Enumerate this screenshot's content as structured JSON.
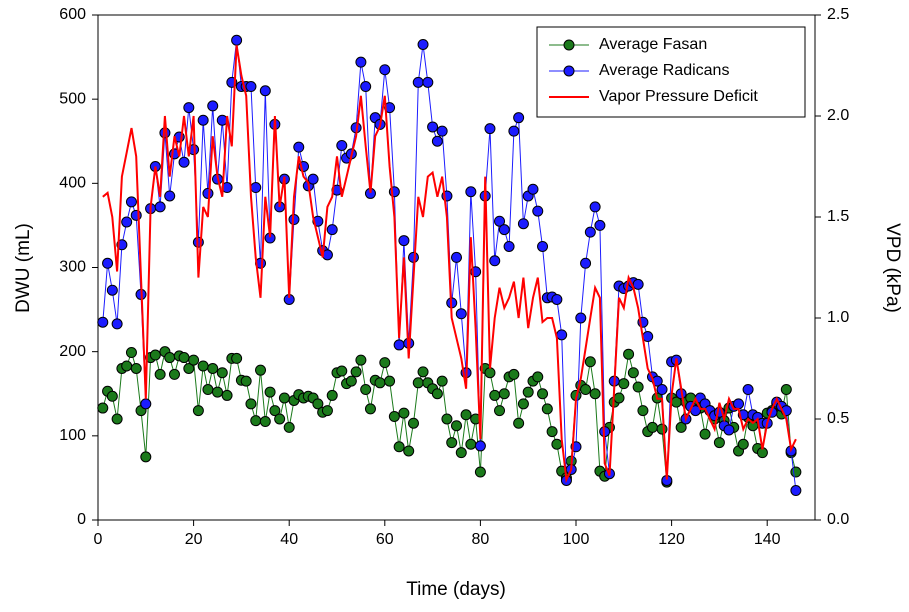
{
  "chart_data": {
    "type": "line",
    "x_label": "Time (days)",
    "y_label": "DWU (mL)",
    "y2_label": "VPD (kPa)",
    "xlim": [
      0,
      150
    ],
    "xticks": [
      0,
      20,
      40,
      60,
      80,
      100,
      120,
      140
    ],
    "ylim": [
      0,
      600
    ],
    "yticks": [
      0,
      100,
      200,
      300,
      400,
      500,
      600
    ],
    "y2lim": [
      0,
      2.5
    ],
    "y2ticks": [
      {
        "value": 0,
        "label": "0.0"
      },
      0.5,
      {
        "value": 1,
        "label": "1.0"
      },
      1.5,
      {
        "value": 2,
        "label": "2.0"
      },
      2.5
    ],
    "legend": "upper right",
    "x": [
      1,
      2,
      3,
      4,
      5,
      6,
      7,
      8,
      9,
      10,
      11,
      12,
      13,
      14,
      15,
      16,
      17,
      18,
      19,
      20,
      21,
      22,
      23,
      24,
      25,
      26,
      27,
      28,
      29,
      30,
      31,
      32,
      33,
      34,
      35,
      36,
      37,
      38,
      39,
      40,
      41,
      42,
      43,
      44,
      45,
      46,
      47,
      48,
      49,
      50,
      51,
      52,
      53,
      54,
      55,
      56,
      57,
      58,
      59,
      60,
      61,
      62,
      63,
      64,
      65,
      66,
      67,
      68,
      69,
      70,
      71,
      72,
      73,
      74,
      75,
      76,
      77,
      78,
      79,
      80,
      81,
      82,
      83,
      84,
      85,
      86,
      87,
      88,
      89,
      90,
      91,
      92,
      93,
      94,
      95,
      96,
      97,
      98,
      99,
      100,
      101,
      102,
      103,
      104,
      105,
      106,
      107,
      108,
      109,
      110,
      111,
      112,
      113,
      114,
      115,
      116,
      117,
      118,
      119,
      120,
      121,
      122,
      123,
      124,
      125,
      126,
      127,
      128,
      129,
      130,
      131,
      132,
      133,
      134,
      135,
      136,
      137,
      138,
      139,
      140,
      141,
      142,
      143,
      144,
      145,
      146
    ],
    "series": [
      {
        "name": "Average Fasan",
        "color": "#1b7a1b",
        "markers": true,
        "values": [
          133,
          153,
          147,
          120,
          180,
          183,
          199,
          180,
          130,
          75,
          193,
          196,
          173,
          200,
          193,
          173,
          195,
          193,
          180,
          190,
          130,
          183,
          155,
          180,
          152,
          175,
          148,
          192,
          192,
          166,
          165,
          138,
          118,
          178,
          117,
          152,
          130,
          120,
          145,
          110,
          142,
          149,
          145,
          147,
          145,
          138,
          128,
          130,
          148,
          175,
          177,
          162,
          165,
          176,
          190,
          155,
          132,
          166,
          163,
          187,
          165,
          123,
          87,
          127,
          82,
          115,
          163,
          176,
          163,
          156,
          150,
          165,
          120,
          92,
          112,
          80,
          125,
          90,
          120,
          57,
          180,
          175,
          148,
          130,
          150,
          170,
          173,
          115,
          138,
          152,
          165,
          170,
          150,
          132,
          105,
          90,
          58,
          50,
          70,
          148,
          160,
          155,
          188,
          150,
          58,
          52,
          110,
          140,
          145,
          162,
          197,
          175,
          158,
          130,
          105,
          110,
          145,
          108,
          45,
          145,
          140,
          110,
          140,
          145,
          135,
          133,
          102,
          130,
          120,
          92,
          118,
          133,
          110,
          82,
          90,
          122,
          112,
          85,
          80,
          127,
          130,
          138,
          126,
          155,
          80,
          57
        ]
      },
      {
        "name": "Average Radicans",
        "color": "#1c1cff",
        "markers": true,
        "values": [
          235,
          305,
          273,
          233,
          327,
          354,
          378,
          362,
          268,
          138,
          370,
          420,
          372,
          460,
          385,
          435,
          455,
          425,
          490,
          440,
          330,
          475,
          388,
          492,
          405,
          475,
          395,
          520,
          570,
          515,
          515,
          515,
          395,
          305,
          510,
          335,
          470,
          372,
          405,
          262,
          357,
          443,
          420,
          397,
          405,
          355,
          320,
          315,
          345,
          392,
          445,
          430,
          435,
          466,
          544,
          515,
          388,
          478,
          470,
          535,
          490,
          390,
          208,
          332,
          210,
          312,
          520,
          565,
          520,
          467,
          450,
          462,
          385,
          258,
          312,
          245,
          175,
          390,
          295,
          88,
          385,
          465,
          308,
          355,
          345,
          325,
          462,
          478,
          352,
          385,
          393,
          367,
          325,
          264,
          265,
          262,
          220,
          47,
          60,
          87,
          240,
          305,
          342,
          372,
          350,
          105,
          55,
          165,
          278,
          275,
          278,
          282,
          280,
          235,
          218,
          170,
          165,
          155,
          47,
          188,
          190,
          150,
          120,
          135,
          130,
          145,
          138,
          130,
          124,
          128,
          112,
          107,
          135,
          138,
          125,
          155,
          125,
          122,
          115,
          115,
          128,
          140,
          135,
          130,
          82,
          35
        ]
      },
      {
        "name": "Vapor Pressure Deficit",
        "color": "#ff0000",
        "markers": false,
        "axis": "y2",
        "values": [
          1.6,
          1.62,
          1.5,
          1.23,
          1.7,
          1.82,
          1.94,
          1.8,
          1.2,
          0.6,
          1.55,
          1.75,
          1.6,
          2.0,
          1.7,
          1.9,
          1.8,
          2.0,
          1.8,
          2.0,
          1.2,
          1.55,
          1.5,
          1.9,
          1.7,
          1.6,
          2.0,
          1.85,
          2.35,
          2.2,
          2.1,
          1.6,
          1.3,
          1.1,
          1.6,
          1.4,
          2.0,
          1.55,
          1.7,
          1.1,
          1.6,
          1.8,
          1.7,
          1.67,
          1.5,
          1.4,
          1.3,
          1.55,
          1.6,
          1.8,
          1.6,
          1.7,
          1.8,
          1.9,
          2.1,
          1.85,
          1.62,
          1.9,
          1.95,
          2.1,
          1.75,
          1.5,
          0.9,
          1.3,
          0.8,
          1.2,
          1.6,
          1.5,
          1.7,
          1.72,
          1.6,
          1.7,
          1.5,
          1.0,
          0.9,
          0.8,
          0.65,
          1.4,
          0.95,
          0.4,
          1.7,
          0.75,
          1.0,
          1.15,
          1.05,
          1.1,
          1.18,
          1.0,
          1.2,
          0.95,
          1.1,
          1.2,
          0.98,
          1.0,
          1.0,
          0.9,
          0.4,
          0.2,
          0.25,
          0.6,
          0.7,
          0.85,
          1.0,
          1.15,
          1.1,
          0.28,
          0.22,
          0.65,
          1.1,
          1.05,
          1.2,
          1.15,
          1.05,
          0.9,
          0.75,
          0.7,
          0.6,
          0.6,
          0.2,
          0.62,
          0.8,
          0.65,
          0.5,
          0.55,
          0.6,
          0.55,
          0.55,
          0.5,
          0.45,
          0.58,
          0.5,
          0.6,
          0.55,
          0.55,
          0.45,
          0.5,
          0.48,
          0.5,
          0.35,
          0.48,
          0.55,
          0.6,
          0.55,
          0.5,
          0.35,
          0.4
        ]
      }
    ]
  }
}
